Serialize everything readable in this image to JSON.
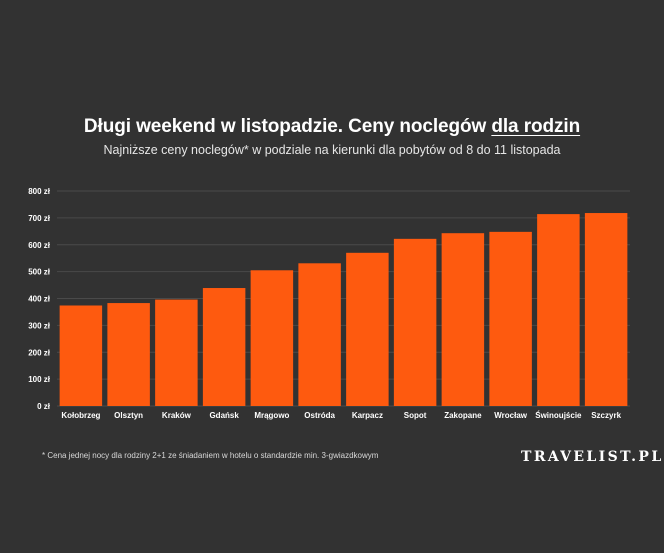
{
  "header": {
    "title_main": "Długi weekend w listopadzie. Ceny noclegów ",
    "title_highlight": "dla rodzin",
    "subtitle": "Najniższe ceny noclegów* w podziale na kierunki dla pobytów od 8 do 11 listopada"
  },
  "footer": {
    "footnote": "* Cena jednej nocy dla rodziny 2+1 ze śniadaniem w hotelu o standardzie min. 3-gwiazdkowym",
    "logo": "TRAVELIST.PL"
  },
  "colors": {
    "background": "#323232",
    "bar": "#fe5a0f",
    "grid": "#4a4a4a",
    "text": "#ffffff"
  },
  "chart_data": {
    "type": "bar",
    "categories": [
      "Kołobrzeg",
      "Olsztyn",
      "Kraków",
      "Gdańsk",
      "Mrągowo",
      "Ostróda",
      "Karpacz",
      "Sopot",
      "Zakopane",
      "Wrocław",
      "Świnoujście",
      "Szczyrk"
    ],
    "values": [
      374,
      383,
      396,
      439,
      505,
      531,
      570,
      622,
      643,
      648,
      714,
      718
    ],
    "ylim": [
      0,
      800
    ],
    "yticks": [
      0,
      100,
      200,
      300,
      400,
      500,
      600,
      700,
      800
    ],
    "ytick_suffix": " zł",
    "grid": true,
    "xlabel": "",
    "ylabel": ""
  }
}
